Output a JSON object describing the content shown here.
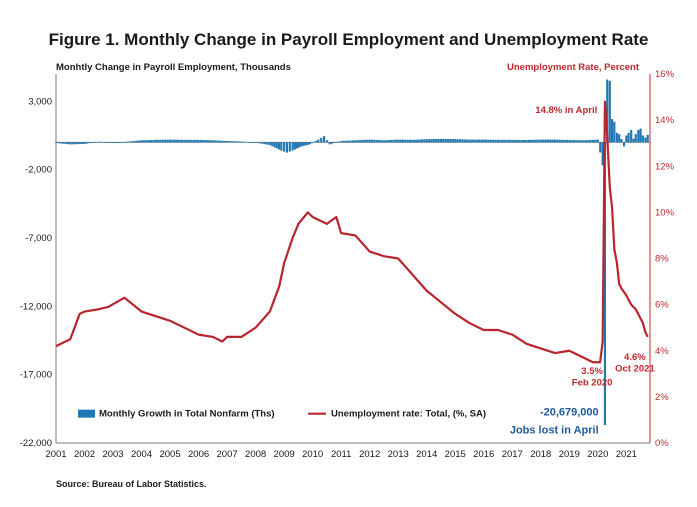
{
  "chart_data": {
    "type": "bar+line",
    "title": "Figure 1. Monthly Change in Payroll Employment and Unemployment Rate",
    "left_axis_label": "Monhtly Change in Payroll Employment, Thousands",
    "right_axis_label": "Unemployment Rate, Percent",
    "source": "Source: Bureau of Labor Statistics.",
    "left_ylim": [
      -22000,
      5000
    ],
    "left_ticks": [
      3000,
      -2000,
      -7000,
      -12000,
      -17000,
      -22000
    ],
    "left_tick_labels": [
      "3,000",
      "-2,000",
      "-7,000",
      "-12,000",
      "-17,000",
      "-22,000"
    ],
    "right_ylim": [
      0,
      16
    ],
    "right_ticks": [
      0,
      2,
      4,
      6,
      8,
      10,
      12,
      14,
      16
    ],
    "right_tick_labels": [
      "0%",
      "2%",
      "4%",
      "6%",
      "8%",
      "10%",
      "12%",
      "14%",
      "16%"
    ],
    "x_labels": [
      "2001",
      "2002",
      "2003",
      "2004",
      "2005",
      "2006",
      "2007",
      "2008",
      "2009",
      "2010",
      "2011",
      "2012",
      "2013",
      "2014",
      "2015",
      "2016",
      "2017",
      "2018",
      "2019",
      "2020",
      "2021"
    ],
    "x_range": [
      2001.0,
      2021.83
    ],
    "series": [
      {
        "name": "Monthly Growth in Total Nonfarm (Ths)",
        "kind": "bar",
        "color": "#1f77b4",
        "points": [
          [
            2001.0,
            -50
          ],
          [
            2001.5,
            -150
          ],
          [
            2002.0,
            -120
          ],
          [
            2002.5,
            50
          ],
          [
            2003.0,
            -50
          ],
          [
            2003.5,
            50
          ],
          [
            2004.0,
            150
          ],
          [
            2004.5,
            180
          ],
          [
            2005.0,
            200
          ],
          [
            2005.5,
            180
          ],
          [
            2006.0,
            180
          ],
          [
            2006.5,
            150
          ],
          [
            2007.0,
            100
          ],
          [
            2007.5,
            60
          ],
          [
            2008.0,
            -20
          ],
          [
            2008.5,
            -200
          ],
          [
            2008.9,
            -600
          ],
          [
            2009.1,
            -750
          ],
          [
            2009.3,
            -600
          ],
          [
            2009.6,
            -300
          ],
          [
            2009.9,
            -150
          ],
          [
            2010.2,
            200
          ],
          [
            2010.4,
            450
          ],
          [
            2010.6,
            -150
          ],
          [
            2011.0,
            100
          ],
          [
            2011.5,
            150
          ],
          [
            2012.0,
            200
          ],
          [
            2012.5,
            150
          ],
          [
            2013.0,
            200
          ],
          [
            2013.5,
            180
          ],
          [
            2014.0,
            230
          ],
          [
            2014.5,
            250
          ],
          [
            2015.0,
            240
          ],
          [
            2015.5,
            200
          ],
          [
            2016.0,
            200
          ],
          [
            2016.5,
            180
          ],
          [
            2017.0,
            180
          ],
          [
            2017.5,
            170
          ],
          [
            2018.0,
            200
          ],
          [
            2018.5,
            200
          ],
          [
            2019.0,
            170
          ],
          [
            2019.5,
            150
          ],
          [
            2020.0,
            200
          ],
          [
            2020.17,
            -1680
          ],
          [
            2020.25,
            -20679
          ],
          [
            2020.33,
            4600
          ],
          [
            2020.42,
            4500
          ],
          [
            2020.5,
            1700
          ],
          [
            2020.58,
            1500
          ],
          [
            2020.67,
            700
          ],
          [
            2020.75,
            600
          ],
          [
            2020.83,
            250
          ],
          [
            2020.92,
            -300
          ],
          [
            2021.0,
            500
          ],
          [
            2021.08,
            700
          ],
          [
            2021.17,
            900
          ],
          [
            2021.25,
            270
          ],
          [
            2021.33,
            600
          ],
          [
            2021.42,
            900
          ],
          [
            2021.5,
            1000
          ],
          [
            2021.58,
            500
          ],
          [
            2021.67,
            350
          ],
          [
            2021.75,
            550
          ]
        ]
      },
      {
        "name": "Unemployment rate: Total, (%, SA)",
        "kind": "line",
        "color": "#b7262c",
        "points": [
          [
            2001.0,
            4.2
          ],
          [
            2001.5,
            4.5
          ],
          [
            2001.83,
            5.6
          ],
          [
            2002.0,
            5.7
          ],
          [
            2002.5,
            5.8
          ],
          [
            2002.83,
            5.9
          ],
          [
            2003.4,
            6.3
          ],
          [
            2003.6,
            6.1
          ],
          [
            2004.0,
            5.7
          ],
          [
            2004.5,
            5.5
          ],
          [
            2005.0,
            5.3
          ],
          [
            2005.5,
            5.0
          ],
          [
            2006.0,
            4.7
          ],
          [
            2006.5,
            4.6
          ],
          [
            2006.83,
            4.4
          ],
          [
            2007.0,
            4.6
          ],
          [
            2007.5,
            4.6
          ],
          [
            2008.0,
            5.0
          ],
          [
            2008.5,
            5.7
          ],
          [
            2008.83,
            6.8
          ],
          [
            2009.0,
            7.8
          ],
          [
            2009.3,
            8.9
          ],
          [
            2009.5,
            9.5
          ],
          [
            2009.83,
            10.0
          ],
          [
            2010.0,
            9.8
          ],
          [
            2010.5,
            9.5
          ],
          [
            2010.83,
            9.8
          ],
          [
            2011.0,
            9.1
          ],
          [
            2011.5,
            9.0
          ],
          [
            2012.0,
            8.3
          ],
          [
            2012.5,
            8.1
          ],
          [
            2013.0,
            8.0
          ],
          [
            2013.5,
            7.3
          ],
          [
            2014.0,
            6.6
          ],
          [
            2014.5,
            6.1
          ],
          [
            2015.0,
            5.6
          ],
          [
            2015.5,
            5.2
          ],
          [
            2016.0,
            4.9
          ],
          [
            2016.5,
            4.9
          ],
          [
            2017.0,
            4.7
          ],
          [
            2017.5,
            4.3
          ],
          [
            2018.0,
            4.1
          ],
          [
            2018.5,
            3.9
          ],
          [
            2019.0,
            4.0
          ],
          [
            2019.5,
            3.7
          ],
          [
            2019.83,
            3.5
          ],
          [
            2020.08,
            3.5
          ],
          [
            2020.17,
            4.4
          ],
          [
            2020.25,
            14.8
          ],
          [
            2020.33,
            13.3
          ],
          [
            2020.42,
            11.1
          ],
          [
            2020.5,
            10.2
          ],
          [
            2020.58,
            8.4
          ],
          [
            2020.67,
            7.8
          ],
          [
            2020.75,
            6.9
          ],
          [
            2020.83,
            6.7
          ],
          [
            2021.0,
            6.4
          ],
          [
            2021.17,
            6.0
          ],
          [
            2021.33,
            5.8
          ],
          [
            2021.5,
            5.4
          ],
          [
            2021.58,
            5.2
          ],
          [
            2021.67,
            4.8
          ],
          [
            2021.75,
            4.6
          ]
        ]
      }
    ],
    "annotations": [
      {
        "text": "14.8% in April"
      },
      {
        "text": "3.5%"
      },
      {
        "text": "Feb 2020"
      },
      {
        "text": "4.6%"
      },
      {
        "text": "Oct 2021"
      },
      {
        "text": "-20,679,000"
      },
      {
        "text": "Jobs lost in April"
      }
    ],
    "legend_placement": "bottom-left",
    "grid": "none"
  }
}
